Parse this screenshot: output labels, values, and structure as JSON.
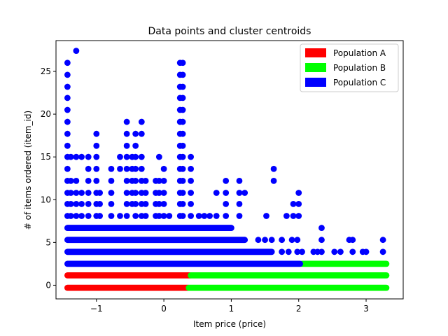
{
  "chart_data": {
    "type": "scatter",
    "title": "Data points and cluster centroids",
    "xlabel": "Item price (price)",
    "ylabel": "# of items ordered (item_id)",
    "xlim": [
      -1.6,
      3.55
    ],
    "ylim": [
      -1.6,
      28.6
    ],
    "xticks": [
      -1,
      0,
      1,
      2,
      3
    ],
    "xtick_labels": [
      "−1",
      "0",
      "1",
      "2",
      "3"
    ],
    "yticks": [
      0,
      5,
      10,
      15,
      20,
      25
    ],
    "ytick_labels": [
      "0",
      "5",
      "10",
      "15",
      "20",
      "25"
    ],
    "grid": false,
    "legend_position": "top-right",
    "series": [
      {
        "name": "Population A",
        "color": "#ff0000",
        "bands": [
          {
            "y": -0.3,
            "x_from": -1.43,
            "x_to": 0.36
          },
          {
            "y": 1.15,
            "x_from": -1.43,
            "x_to": 0.39
          }
        ]
      },
      {
        "name": "Population B",
        "color": "#00ff00",
        "bands": [
          {
            "y": -0.3,
            "x_from": 0.37,
            "x_to": 3.3
          },
          {
            "y": 1.15,
            "x_from": 0.4,
            "x_to": 3.3
          },
          {
            "y": 2.5,
            "x_from": 2.05,
            "x_to": 3.3
          }
        ]
      },
      {
        "name": "Population C",
        "color": "#0000ff",
        "bands": [
          {
            "y": 2.5,
            "x_from": -1.43,
            "x_to": 2.02
          },
          {
            "y": 3.9,
            "x_from": -1.43,
            "x_to": 1.6
          },
          {
            "y": 5.3,
            "x_from": -1.43,
            "x_to": 1.2
          },
          {
            "y": 6.7,
            "x_from": -1.43,
            "x_to": 1.0
          }
        ],
        "points": [
          [
            -1.43,
            26.0
          ],
          [
            -1.43,
            24.6
          ],
          [
            -1.43,
            23.2
          ],
          [
            -1.43,
            21.9
          ],
          [
            -1.43,
            20.5
          ],
          [
            -1.43,
            19.1
          ],
          [
            -1.43,
            17.7
          ],
          [
            -1.43,
            16.3
          ],
          [
            -1.43,
            15.0
          ],
          [
            -1.43,
            13.6
          ],
          [
            -1.43,
            12.2
          ],
          [
            -1.43,
            10.8
          ],
          [
            -1.43,
            9.5
          ],
          [
            -1.43,
            8.1
          ],
          [
            -1.3,
            27.4
          ],
          [
            -1.3,
            15.0
          ],
          [
            -1.3,
            12.2
          ],
          [
            -1.3,
            10.8
          ],
          [
            -1.3,
            9.5
          ],
          [
            -1.3,
            8.1
          ],
          [
            -1.38,
            15.0
          ],
          [
            -1.38,
            12.2
          ],
          [
            -1.38,
            10.8
          ],
          [
            -1.38,
            9.5
          ],
          [
            -1.38,
            8.1
          ],
          [
            -1.22,
            15.0
          ],
          [
            -1.22,
            10.8
          ],
          [
            -1.22,
            9.5
          ],
          [
            -1.22,
            8.1
          ],
          [
            -1.12,
            15.0
          ],
          [
            -1.12,
            13.6
          ],
          [
            -1.12,
            12.2
          ],
          [
            -1.12,
            10.8
          ],
          [
            -1.12,
            9.5
          ],
          [
            -1.12,
            8.1
          ],
          [
            -1.0,
            17.7
          ],
          [
            -1.0,
            16.3
          ],
          [
            -1.0,
            15.0
          ],
          [
            -1.0,
            13.6
          ],
          [
            -1.0,
            12.2
          ],
          [
            -1.0,
            10.8
          ],
          [
            -1.0,
            9.5
          ],
          [
            -1.0,
            8.1
          ],
          [
            -0.95,
            10.8
          ],
          [
            -0.95,
            9.5
          ],
          [
            -0.95,
            8.1
          ],
          [
            -0.78,
            13.6
          ],
          [
            -0.78,
            12.2
          ],
          [
            -0.78,
            10.8
          ],
          [
            -0.78,
            9.5
          ],
          [
            -0.78,
            8.1
          ],
          [
            -0.65,
            15.0
          ],
          [
            -0.65,
            13.6
          ],
          [
            -0.65,
            8.1
          ],
          [
            -0.55,
            19.1
          ],
          [
            -0.55,
            17.7
          ],
          [
            -0.55,
            16.3
          ],
          [
            -0.55,
            15.0
          ],
          [
            -0.55,
            13.6
          ],
          [
            -0.55,
            12.2
          ],
          [
            -0.55,
            10.8
          ],
          [
            -0.55,
            9.5
          ],
          [
            -0.55,
            8.1
          ],
          [
            -0.47,
            15.0
          ],
          [
            -0.47,
            13.6
          ],
          [
            -0.47,
            12.2
          ],
          [
            -0.47,
            10.8
          ],
          [
            -0.47,
            9.5
          ],
          [
            -0.42,
            17.7
          ],
          [
            -0.42,
            16.3
          ],
          [
            -0.42,
            15.0
          ],
          [
            -0.42,
            13.6
          ],
          [
            -0.42,
            12.2
          ],
          [
            -0.42,
            10.8
          ],
          [
            -0.42,
            9.5
          ],
          [
            -0.42,
            8.1
          ],
          [
            -0.33,
            19.1
          ],
          [
            -0.33,
            17.7
          ],
          [
            -0.33,
            15.0
          ],
          [
            -0.33,
            13.6
          ],
          [
            -0.33,
            12.2
          ],
          [
            -0.33,
            10.8
          ],
          [
            -0.33,
            9.5
          ],
          [
            -0.33,
            8.1
          ],
          [
            -0.27,
            12.2
          ],
          [
            -0.27,
            10.8
          ],
          [
            -0.27,
            9.5
          ],
          [
            -0.27,
            8.1
          ],
          [
            -0.12,
            12.2
          ],
          [
            -0.12,
            10.8
          ],
          [
            -0.12,
            9.5
          ],
          [
            -0.12,
            8.1
          ],
          [
            -0.07,
            15.0
          ],
          [
            -0.07,
            12.2
          ],
          [
            -0.07,
            10.8
          ],
          [
            -0.07,
            9.5
          ],
          [
            -0.07,
            8.1
          ],
          [
            0.0,
            13.6
          ],
          [
            0.0,
            12.2
          ],
          [
            0.0,
            10.8
          ],
          [
            0.0,
            9.5
          ],
          [
            0.0,
            8.1
          ],
          [
            0.08,
            8.1
          ],
          [
            0.24,
            26.0
          ],
          [
            0.24,
            24.6
          ],
          [
            0.24,
            23.2
          ],
          [
            0.24,
            21.9
          ],
          [
            0.24,
            20.5
          ],
          [
            0.24,
            19.1
          ],
          [
            0.24,
            17.7
          ],
          [
            0.24,
            16.3
          ],
          [
            0.24,
            15.0
          ],
          [
            0.24,
            13.6
          ],
          [
            0.24,
            12.2
          ],
          [
            0.24,
            10.8
          ],
          [
            0.24,
            9.5
          ],
          [
            0.24,
            8.1
          ],
          [
            0.28,
            26.0
          ],
          [
            0.28,
            24.6
          ],
          [
            0.28,
            23.2
          ],
          [
            0.28,
            21.9
          ],
          [
            0.28,
            20.5
          ],
          [
            0.28,
            19.1
          ],
          [
            0.28,
            17.7
          ],
          [
            0.28,
            16.3
          ],
          [
            0.28,
            15.0
          ],
          [
            0.28,
            13.6
          ],
          [
            0.28,
            12.2
          ],
          [
            0.28,
            10.8
          ],
          [
            0.28,
            9.5
          ],
          [
            0.28,
            8.1
          ],
          [
            0.4,
            15.0
          ],
          [
            0.4,
            13.6
          ],
          [
            0.4,
            12.2
          ],
          [
            0.4,
            10.8
          ],
          [
            0.4,
            9.5
          ],
          [
            0.4,
            8.1
          ],
          [
            0.52,
            8.1
          ],
          [
            0.6,
            8.1
          ],
          [
            0.68,
            8.1
          ],
          [
            0.78,
            10.8
          ],
          [
            0.78,
            8.1
          ],
          [
            0.92,
            12.2
          ],
          [
            0.92,
            10.8
          ],
          [
            0.92,
            9.5
          ],
          [
            0.92,
            8.1
          ],
          [
            1.12,
            12.2
          ],
          [
            1.12,
            10.8
          ],
          [
            1.12,
            9.5
          ],
          [
            1.12,
            8.1
          ],
          [
            1.2,
            10.8
          ],
          [
            1.52,
            8.1
          ],
          [
            1.63,
            13.6
          ],
          [
            1.63,
            12.2
          ],
          [
            1.82,
            8.1
          ],
          [
            1.92,
            9.5
          ],
          [
            1.92,
            8.1
          ],
          [
            2.0,
            10.8
          ],
          [
            2.0,
            9.5
          ],
          [
            2.0,
            8.1
          ],
          [
            1.4,
            5.3
          ],
          [
            1.5,
            5.3
          ],
          [
            1.6,
            5.3
          ],
          [
            1.75,
            5.3
          ],
          [
            1.9,
            5.3
          ],
          [
            1.98,
            5.3
          ],
          [
            1.75,
            3.9
          ],
          [
            1.85,
            3.9
          ],
          [
            1.98,
            3.9
          ],
          [
            2.05,
            3.9
          ],
          [
            2.22,
            3.9
          ],
          [
            2.28,
            3.9
          ],
          [
            2.34,
            3.9
          ],
          [
            2.53,
            3.9
          ],
          [
            2.62,
            3.9
          ],
          [
            2.8,
            3.9
          ],
          [
            2.95,
            3.9
          ],
          [
            3.0,
            3.9
          ],
          [
            3.25,
            3.9
          ],
          [
            2.34,
            5.3
          ],
          [
            2.34,
            6.7
          ],
          [
            2.75,
            5.3
          ],
          [
            2.8,
            5.3
          ],
          [
            3.25,
            5.3
          ]
        ]
      }
    ]
  }
}
